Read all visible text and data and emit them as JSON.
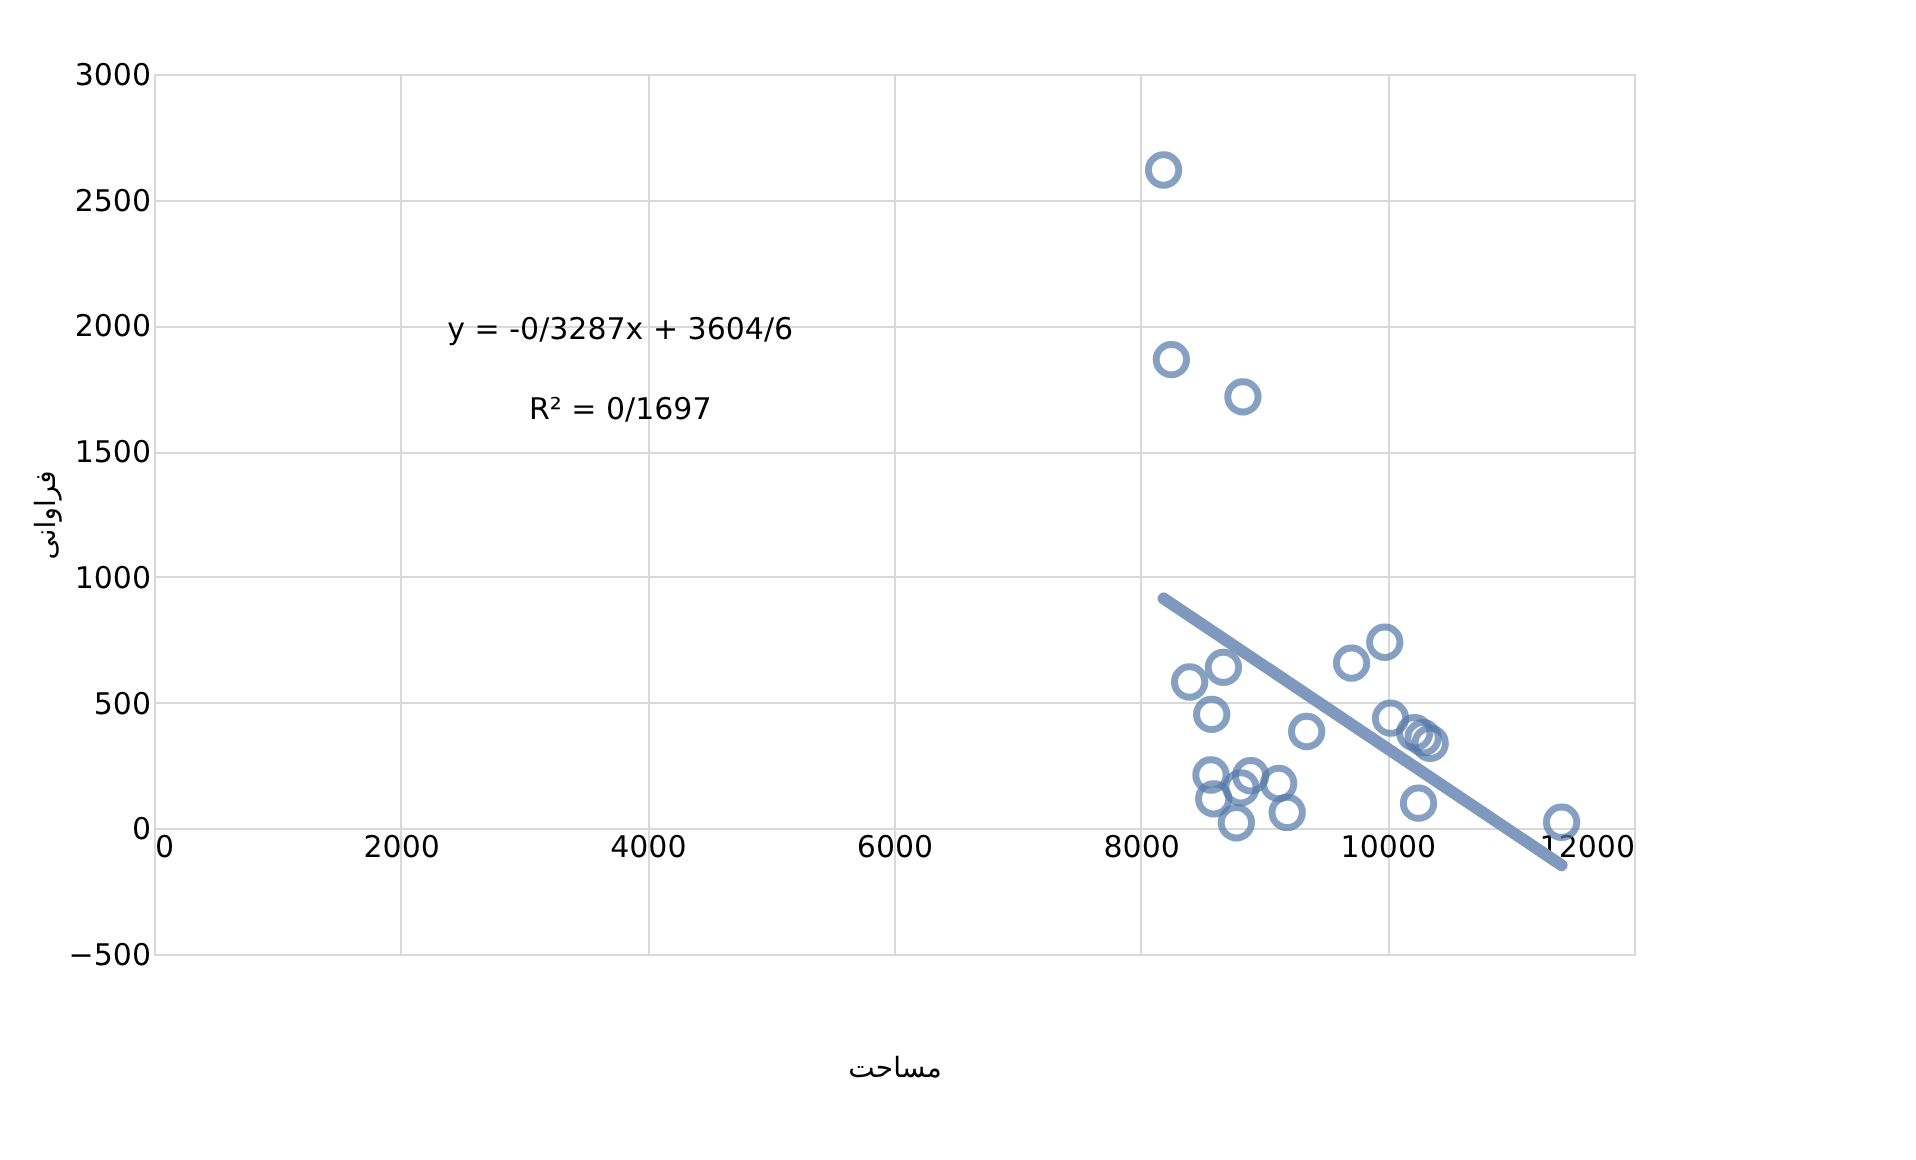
{
  "chart_data": {
    "type": "scatter",
    "xlabel": "مساحت",
    "ylabel": "فراوانی",
    "xlim": [
      0,
      12000
    ],
    "xticks": [
      0,
      2000,
      4000,
      6000,
      8000,
      10000,
      12000
    ],
    "ylim": [
      -500,
      3000
    ],
    "yticks": [
      -500,
      0,
      500,
      1000,
      1500,
      2000,
      2500,
      3000
    ],
    "grid": true,
    "legend": false,
    "marker": "circle",
    "annotations": [
      "y = -0/3287x + 3604/6",
      "R² = 0/1697"
    ],
    "series": [
      {
        "color": "#5479a8",
        "x": [
          8186,
          8249,
          8829,
          8397,
          8671,
          8576,
          9346,
          9710,
          9979,
          10026,
          10222,
          10290,
          10348,
          10253,
          11413,
          8570,
          8892,
          9119,
          8592,
          8813,
          8776,
          9188
        ],
        "values": [
          2618,
          1864,
          1716,
          582,
          640,
          453,
          385,
          657,
          740,
          438,
          380,
          360,
          338,
          100,
          24,
          212,
          209,
          178,
          117,
          161,
          22,
          63
        ]
      },
      {
        "type": "line",
        "marker": "none",
        "color": "#7f98bd",
        "x": [
          8186,
          11413
        ],
        "values": [
          914,
          -147
        ]
      }
    ]
  }
}
